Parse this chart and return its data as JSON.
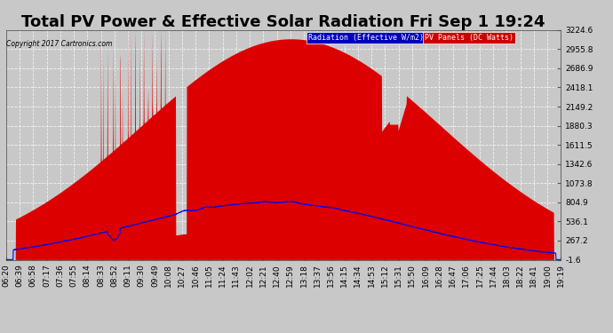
{
  "title": "Total PV Power & Effective Solar Radiation Fri Sep 1 19:24",
  "copyright_text": "Copyright 2017 Cartronics.com",
  "legend_items": [
    {
      "label": "Radiation (Effective W/m2)",
      "bg_color": "#0000bb",
      "text_color": "#ffffff"
    },
    {
      "label": "PV Panels (DC Watts)",
      "bg_color": "#cc0000",
      "text_color": "#ffffff"
    }
  ],
  "y_ticks": [
    -1.6,
    267.2,
    536.1,
    804.9,
    1073.8,
    1342.6,
    1611.5,
    1880.3,
    2149.2,
    2418.1,
    2686.9,
    2955.8,
    3224.6
  ],
  "ylim": [
    -1.6,
    3224.6
  ],
  "background_color": "#c8c8c8",
  "plot_bg_color": "#c8c8c8",
  "grid_color": "#ffffff",
  "x_labels": [
    "06:20",
    "06:39",
    "06:58",
    "07:17",
    "07:36",
    "07:55",
    "08:14",
    "08:33",
    "08:52",
    "09:11",
    "09:30",
    "09:49",
    "10:08",
    "10:27",
    "10:46",
    "11:05",
    "11:24",
    "11:43",
    "12:02",
    "12:21",
    "12:40",
    "12:59",
    "13:18",
    "13:37",
    "13:56",
    "14:15",
    "14:34",
    "14:53",
    "15:12",
    "15:31",
    "15:50",
    "16:09",
    "16:28",
    "16:47",
    "17:06",
    "17:25",
    "17:44",
    "18:03",
    "18:22",
    "18:41",
    "19:00",
    "19:19"
  ],
  "pv_color": "#dd0000",
  "radiation_color": "#0000ee",
  "title_fontsize": 13,
  "tick_fontsize": 6.5,
  "ylabel_color": "#000000"
}
